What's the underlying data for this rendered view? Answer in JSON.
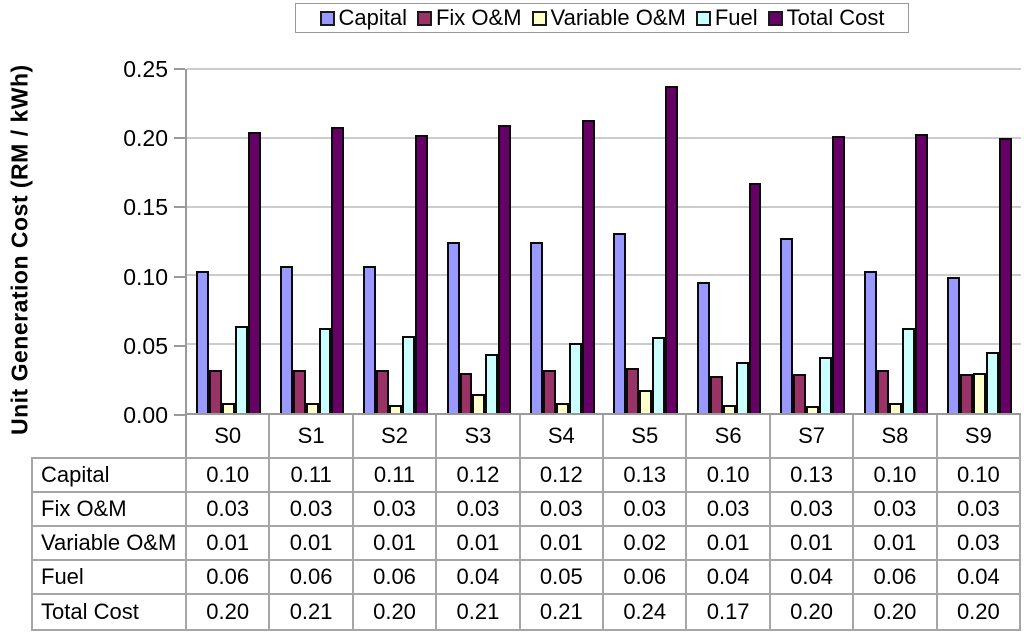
{
  "chart_data": {
    "type": "bar",
    "title": "",
    "ylabel": "Unit Generation Cost (RM / kWh)",
    "xlabel": "",
    "ylim": [
      0,
      0.25
    ],
    "ytick_step": 0.05,
    "yticks": [
      "0.25",
      "0.20",
      "0.15",
      "0.10",
      "0.05",
      "0.00"
    ],
    "grid": true,
    "legend_position": "top",
    "categories": [
      "S0",
      "S1",
      "S2",
      "S3",
      "S4",
      "S5",
      "S6",
      "S7",
      "S8",
      "S9"
    ],
    "series": [
      {
        "name": "Capital",
        "color": "#9999ff",
        "values": [
          0.103,
          0.107,
          0.107,
          0.124,
          0.124,
          0.131,
          0.095,
          0.127,
          0.103,
          0.099
        ]
      },
      {
        "name": "Fix O&M",
        "color": "#993366",
        "values": [
          0.031,
          0.031,
          0.031,
          0.029,
          0.031,
          0.033,
          0.027,
          0.028,
          0.031,
          0.028
        ]
      },
      {
        "name": "Variable O&M",
        "color": "#ffffcc",
        "values": [
          0.007,
          0.007,
          0.006,
          0.014,
          0.007,
          0.017,
          0.006,
          0.005,
          0.007,
          0.029
        ]
      },
      {
        "name": "Fuel",
        "color": "#ccffff",
        "values": [
          0.063,
          0.062,
          0.056,
          0.043,
          0.051,
          0.055,
          0.037,
          0.041,
          0.062,
          0.044
        ]
      },
      {
        "name": "Total Cost",
        "color": "#660066",
        "values": [
          0.204,
          0.208,
          0.202,
          0.209,
          0.213,
          0.238,
          0.167,
          0.201,
          0.203,
          0.2
        ]
      }
    ]
  },
  "table": {
    "rows": [
      {
        "label": "Capital",
        "values": [
          "0.10",
          "0.11",
          "0.11",
          "0.12",
          "0.12",
          "0.13",
          "0.10",
          "0.13",
          "0.10",
          "0.10"
        ]
      },
      {
        "label": "Fix O&M",
        "values": [
          "0.03",
          "0.03",
          "0.03",
          "0.03",
          "0.03",
          "0.03",
          "0.03",
          "0.03",
          "0.03",
          "0.03"
        ]
      },
      {
        "label": "Variable O&M",
        "values": [
          "0.01",
          "0.01",
          "0.01",
          "0.01",
          "0.01",
          "0.02",
          "0.01",
          "0.01",
          "0.01",
          "0.03"
        ]
      },
      {
        "label": "Fuel",
        "values": [
          "0.06",
          "0.06",
          "0.06",
          "0.04",
          "0.05",
          "0.06",
          "0.04",
          "0.04",
          "0.06",
          "0.04"
        ]
      },
      {
        "label": "Total Cost",
        "values": [
          "0.20",
          "0.21",
          "0.20",
          "0.21",
          "0.21",
          "0.24",
          "0.17",
          "0.20",
          "0.20",
          "0.20"
        ]
      }
    ]
  },
  "colors": {
    "gridline": "#cccccc",
    "axis_line": "#9a9a9a",
    "table_border": "#a6a6a6",
    "bar_border": "#0a0a0a"
  }
}
